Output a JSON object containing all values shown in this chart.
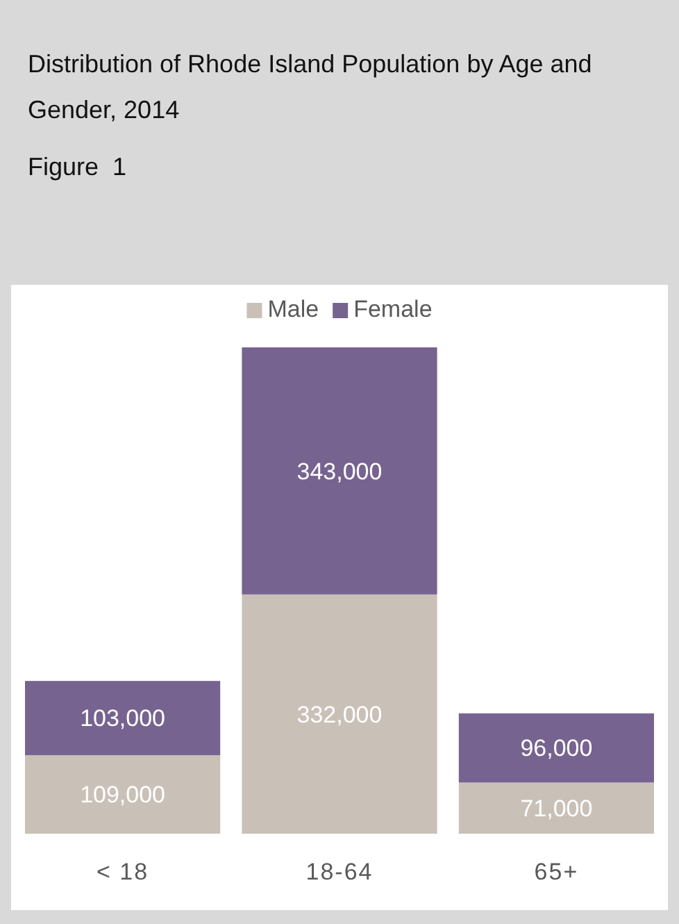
{
  "chart_data": {
    "type": "bar",
    "title": "Distribution of Rhode Island Population by Age and Gender, 2014",
    "subtitle": "Figure  1",
    "categories": [
      "< 18",
      "18-64",
      "65+"
    ],
    "stacked": true,
    "legend": "top",
    "series": [
      {
        "name": "Male",
        "color": "#c9c0b8",
        "values": [
          109000,
          332000,
          71000
        ],
        "value_labels": [
          "109,000",
          "332,000",
          "71,000"
        ]
      },
      {
        "name": "Female",
        "color": "#76638f",
        "values": [
          103000,
          343000,
          96000
        ],
        "value_labels": [
          "103,000",
          "343,000",
          "96,000"
        ]
      }
    ]
  }
}
